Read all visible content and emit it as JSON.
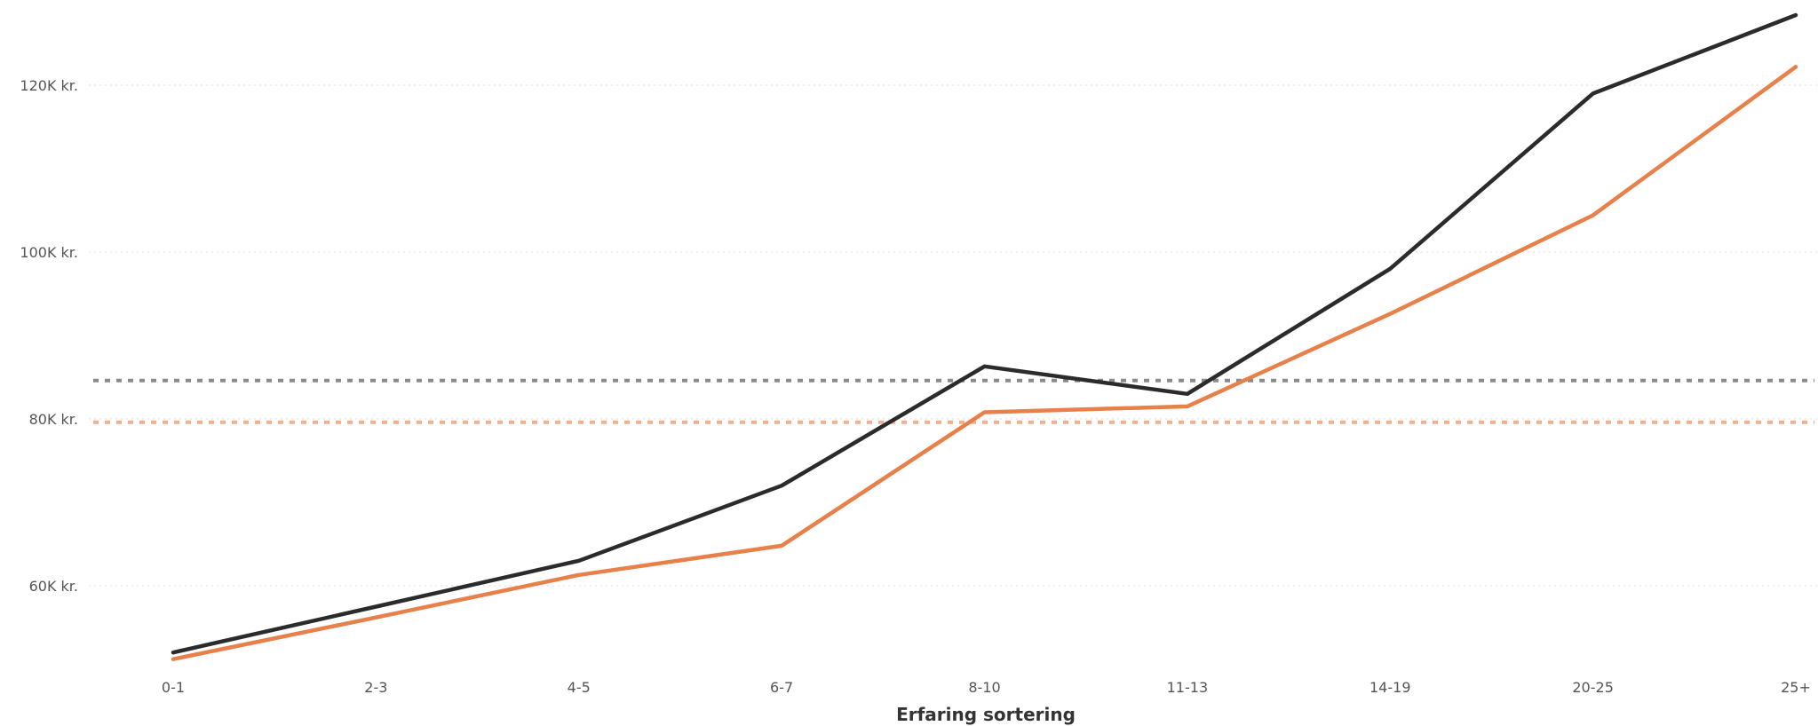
{
  "chart_data": {
    "type": "line",
    "title": "",
    "xlabel": "Erfaring sortering",
    "ylabel": "",
    "categories": [
      "0-1",
      "2-3",
      "4-5",
      "6-7",
      "8-10",
      "11-13",
      "14-19",
      "20-25",
      "25+"
    ],
    "ylim": [
      50000,
      130000
    ],
    "y_ticks": [
      {
        "value": 60000,
        "label": "60K kr."
      },
      {
        "value": 80000,
        "label": "80K kr."
      },
      {
        "value": 100000,
        "label": "100K kr."
      },
      {
        "value": 120000,
        "label": "120K kr."
      }
    ],
    "grid": true,
    "series": [
      {
        "color": "#2b2b2b",
        "values": [
          52000,
          57500,
          63000,
          72000,
          86300,
          83000,
          98000,
          119000,
          128400
        ]
      },
      {
        "color": "#e8804a",
        "values": [
          51200,
          56200,
          61300,
          64800,
          80800,
          81500,
          92600,
          104400,
          122200
        ]
      }
    ],
    "reference_lines": [
      {
        "color": "#8a8a8a",
        "value": 84600
      },
      {
        "color": "#f2b08c",
        "value": 79600
      }
    ]
  }
}
